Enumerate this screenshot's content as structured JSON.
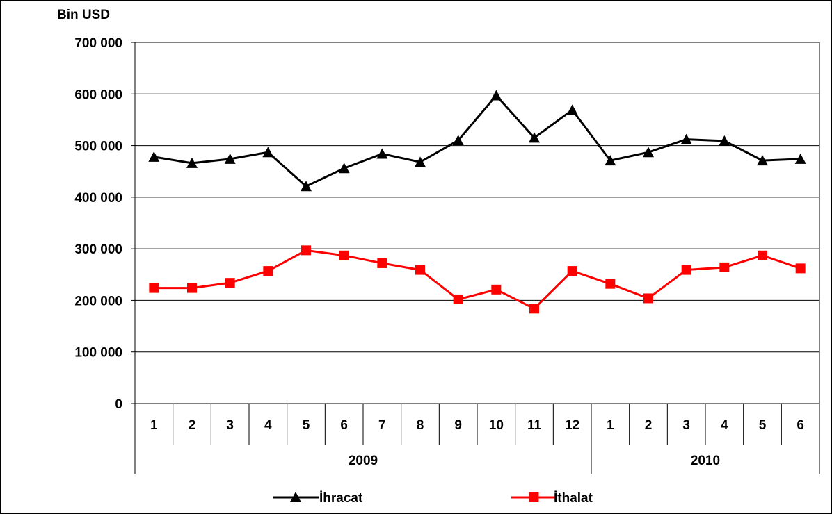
{
  "chart_data": {
    "type": "line",
    "ylabel": "Bin USD",
    "ylim": [
      0,
      700000
    ],
    "yticks": [
      0,
      100000,
      200000,
      300000,
      400000,
      500000,
      600000,
      700000
    ],
    "ytick_labels": [
      "0",
      "100 000",
      "200 000",
      "300 000",
      "400 000",
      "500 000",
      "600 000",
      "700 000"
    ],
    "grid": true,
    "legend_position": "bottom",
    "categories": [
      "1",
      "2",
      "3",
      "4",
      "5",
      "6",
      "7",
      "8",
      "9",
      "10",
      "11",
      "12",
      "1",
      "2",
      "3",
      "4",
      "5",
      "6"
    ],
    "groups": [
      {
        "label": "2009",
        "count": 12
      },
      {
        "label": "2010",
        "count": 6
      }
    ],
    "series": [
      {
        "name": "İhracat",
        "color": "#000000",
        "marker": "triangle",
        "values": [
          478000,
          466000,
          474000,
          487000,
          421000,
          456000,
          484000,
          468000,
          510000,
          597000,
          515000,
          569000,
          471000,
          487000,
          512000,
          509000,
          471000,
          474000
        ]
      },
      {
        "name": "İthalat",
        "color": "#ff0000",
        "marker": "square",
        "values": [
          224000,
          224000,
          234000,
          257000,
          297000,
          287000,
          272000,
          259000,
          202000,
          221000,
          184000,
          257000,
          232000,
          204000,
          259000,
          264000,
          287000,
          262000
        ]
      }
    ]
  }
}
